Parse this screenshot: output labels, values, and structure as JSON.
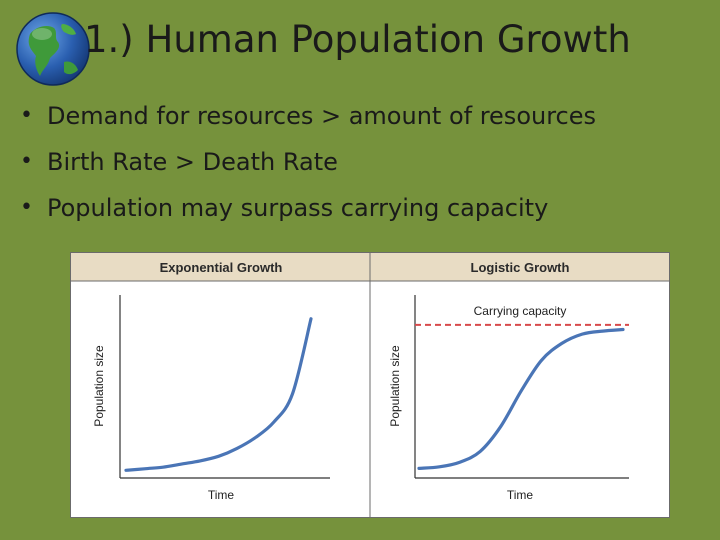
{
  "slide": {
    "title": "1.) Human Population Growth",
    "bullets": [
      "Demand for resources > amount of resources",
      "Birth Rate > Death Rate",
      "Population may surpass carrying capacity"
    ]
  },
  "icons": {
    "globe": "globe-icon",
    "bullet": "bullet-dot-icon"
  },
  "colors": {
    "background": "#76923c",
    "curve": "#4a75b6",
    "capacity_line": "#d8494b",
    "panel_header": "#e8dcc4"
  },
  "chart_data": [
    {
      "type": "line",
      "title": "Exponential Growth",
      "xlabel": "Time",
      "ylabel": "Population size",
      "series": [
        {
          "x": [
            0,
            1,
            2,
            3,
            4,
            5,
            6,
            7,
            8,
            9,
            10
          ],
          "y": [
            3,
            4,
            5,
            7,
            9,
            12,
            17,
            24,
            34,
            52,
            100
          ]
        }
      ],
      "grid": false,
      "xlim": [
        0,
        10
      ],
      "ylim": [
        0,
        105
      ]
    },
    {
      "type": "line",
      "title": "Logistic Growth",
      "xlabel": "Time",
      "ylabel": "Population size",
      "series": [
        {
          "x": [
            0,
            1,
            2,
            3,
            4,
            5,
            6,
            7,
            8,
            9,
            10
          ],
          "y": [
            3,
            4,
            7,
            14,
            30,
            53,
            73,
            84,
            90,
            92,
            93
          ]
        }
      ],
      "annotations": [
        {
          "text": "Carrying capacity",
          "y": 96,
          "style": "dashed"
        }
      ],
      "grid": false,
      "xlim": [
        0,
        10
      ],
      "ylim": [
        0,
        105
      ]
    }
  ]
}
